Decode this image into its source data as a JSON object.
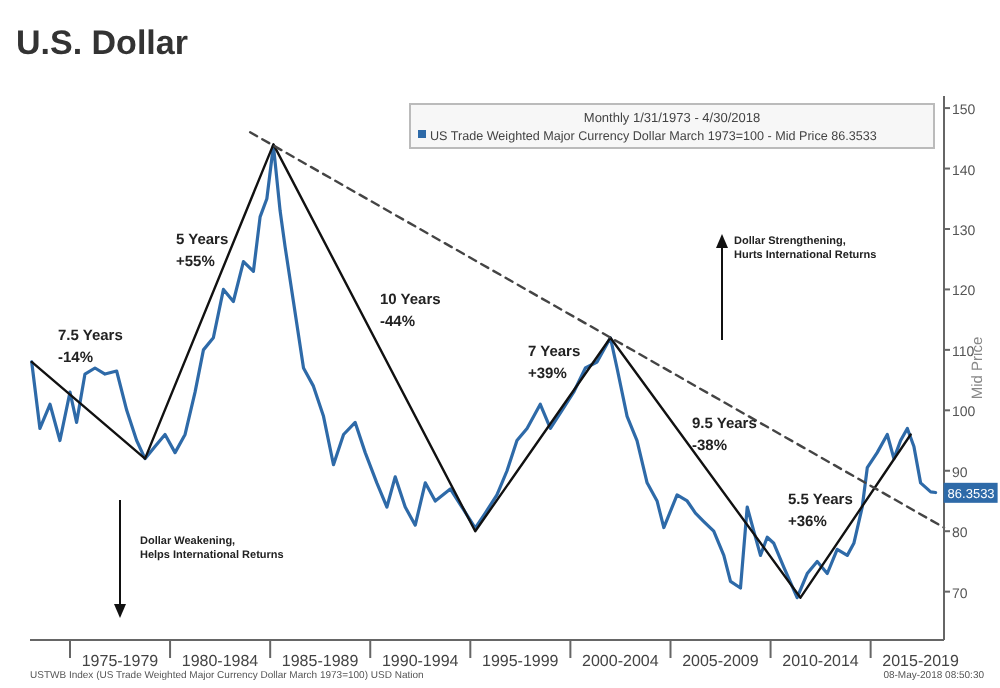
{
  "chart_data": {
    "type": "line",
    "title": "U.S. Dollar",
    "ylabel": "Mid Price",
    "legend_title": "Monthly 1/31/1973 - 4/30/2018",
    "legend": "top right",
    "grid": false,
    "marker": "none",
    "xlim": [
      "1973-01",
      "2018-09"
    ],
    "ylim": [
      62,
      152
    ],
    "xticks": [
      {
        "value": "1975-01",
        "label": null
      },
      {
        "value": "1977-07",
        "label": "1975-1979"
      },
      {
        "value": "1980-01",
        "label": null
      },
      {
        "value": "1982-07",
        "label": "1980-1984"
      },
      {
        "value": "1985-01",
        "label": null
      },
      {
        "value": "1987-07",
        "label": "1985-1989"
      },
      {
        "value": "1990-01",
        "label": null
      },
      {
        "value": "1992-07",
        "label": "1990-1994"
      },
      {
        "value": "1995-01",
        "label": null
      },
      {
        "value": "1997-07",
        "label": "1995-1999"
      },
      {
        "value": "2000-01",
        "label": null
      },
      {
        "value": "2002-07",
        "label": "2000-2004"
      },
      {
        "value": "2005-01",
        "label": null
      },
      {
        "value": "2007-07",
        "label": "2005-2009"
      },
      {
        "value": "2010-01",
        "label": null
      },
      {
        "value": "2012-07",
        "label": "2010-2014"
      },
      {
        "value": "2015-01",
        "label": null
      },
      {
        "value": "2017-07",
        "label": "2015-2019"
      }
    ],
    "yticks": [
      70,
      80,
      90,
      100,
      110,
      120,
      130,
      140,
      150
    ],
    "series": [
      {
        "name": "US Trade Weighted Major Currency Dollar March 1973=100 - Mid Price 86.3533",
        "color": "#2e6aa8",
        "line_style": "solid",
        "x": [
          "1973-02",
          "1973-07",
          "1974-01",
          "1974-07",
          "1975-01",
          "1975-05",
          "1975-10",
          "1976-04",
          "1976-10",
          "1977-05",
          "1977-11",
          "1978-05",
          "1978-10",
          "1979-04",
          "1979-10",
          "1980-04",
          "1980-10",
          "1981-04",
          "1981-09",
          "1982-03",
          "1982-09",
          "1983-03",
          "1983-09",
          "1984-03",
          "1984-07",
          "1984-11",
          "1985-03",
          "1985-07",
          "1985-10",
          "1986-03",
          "1986-09",
          "1987-03",
          "1987-09",
          "1988-03",
          "1988-09",
          "1989-04",
          "1989-10",
          "1990-05",
          "1990-11",
          "1991-04",
          "1991-10",
          "1992-04",
          "1992-10",
          "1993-04",
          "1994-01",
          "1994-08",
          "1995-04",
          "1995-10",
          "1996-05",
          "1996-11",
          "1997-05",
          "1997-11",
          "1998-07",
          "1999-01",
          "1999-08",
          "2000-03",
          "2000-10",
          "2001-05",
          "2002-01",
          "2002-05",
          "2002-11",
          "2003-05",
          "2003-11",
          "2004-05",
          "2004-09",
          "2005-05",
          "2005-11",
          "2006-04",
          "2006-09",
          "2007-03",
          "2007-09",
          "2008-01",
          "2008-07",
          "2008-11",
          "2009-03",
          "2009-07",
          "2009-11",
          "2010-03",
          "2010-09",
          "2011-05",
          "2011-11",
          "2012-05",
          "2012-11",
          "2013-05",
          "2013-11",
          "2014-03",
          "2014-08",
          "2014-11",
          "2015-05",
          "2015-11",
          "2016-03",
          "2016-07",
          "2016-11",
          "2017-03",
          "2017-07",
          "2018-01",
          "2018-04"
        ],
        "values": [
          108,
          97,
          101,
          95,
          103,
          98,
          106,
          107,
          106,
          106.5,
          100,
          95,
          92,
          94,
          96,
          93,
          96,
          103,
          110,
          112,
          120,
          118,
          124.6,
          123,
          132,
          135,
          143.8,
          133,
          127,
          118,
          107,
          104,
          99,
          91,
          96,
          98,
          93,
          88,
          84,
          89,
          84,
          81,
          88,
          85,
          87,
          84,
          80.5,
          83,
          86,
          90,
          95,
          97,
          101,
          97,
          100,
          103,
          107,
          108,
          112,
          107,
          99,
          95,
          88,
          85,
          80.6,
          86,
          85,
          83,
          81.6,
          80,
          76,
          71.7,
          70.6,
          84,
          80,
          76,
          79,
          78,
          74,
          69,
          73,
          75,
          73,
          77,
          76,
          78,
          84,
          90.5,
          93,
          96,
          92,
          95,
          97,
          94,
          88,
          86.5,
          86.4
        ]
      },
      {
        "color": "#111111",
        "line_style": "solid",
        "x": [
          "1973-02",
          "1978-10",
          "1985-03",
          "1995-04",
          "2002-01",
          "2011-07",
          "2017-01"
        ],
        "values": [
          108,
          92,
          144,
          80,
          112,
          69,
          96
        ]
      },
      {
        "color": "#444444",
        "line_style": "dashed",
        "x": [
          "1984-01",
          "2018-09"
        ],
        "values": [
          146,
          80.6
        ]
      }
    ],
    "annotations": [
      "7.5 Years\n-14%",
      "5 Years\n+55%",
      "10 Years\n-44%",
      "7 Years\n+39%",
      "9.5 Years\n-38%",
      "5.5 Years\n+36%",
      "Dollar Strengthening,\nHurts International Returns",
      "Dollar Weakening,\nHelps International Returns",
      {
        "text": "86.3533",
        "x": "2018-04",
        "y": 86.35
      },
      "USTWB Index (US Trade Weighted Major Currency Dollar March 1973=100) USD Nation",
      "08-May-2018 08:50:30"
    ]
  }
}
